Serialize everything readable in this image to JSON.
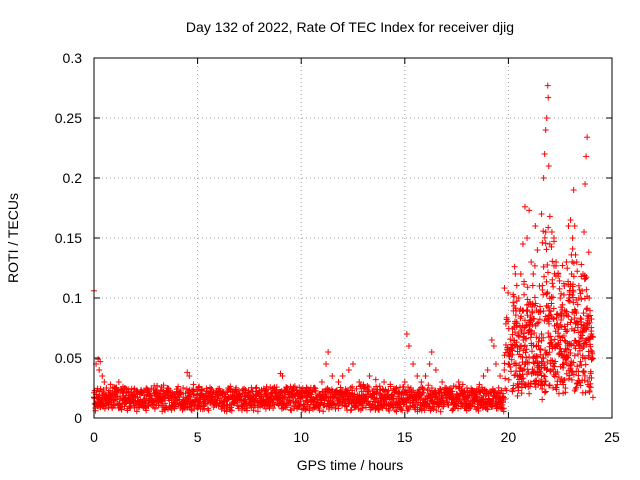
{
  "chart_data": {
    "type": "scatter",
    "title": "Day 132 of 2022, Rate Of TEC Index for receiver djig",
    "xlabel": "GPS time / hours",
    "ylabel": "ROTI / TECUs",
    "xlim": [
      0,
      25
    ],
    "ylim": [
      0,
      0.3
    ],
    "xticks": [
      0,
      5,
      10,
      15,
      20,
      25
    ],
    "xtick_labels": [
      "0",
      "5",
      "10",
      "15",
      "20",
      "25"
    ],
    "yticks": [
      0,
      0.05,
      0.1,
      0.15,
      0.2,
      0.25,
      0.3
    ],
    "ytick_labels": [
      "0",
      "0.05",
      "0.1",
      "0.15",
      "0.2",
      "0.25",
      "0.3"
    ],
    "grid": true,
    "marker": "+",
    "color": "#ff0000",
    "series": [
      {
        "name": "ROTI",
        "points": [
          [
            0.0,
            0.106
          ],
          [
            0.1,
            0.045
          ],
          [
            0.2,
            0.049
          ],
          [
            0.25,
            0.04
          ],
          [
            0.3,
            0.047
          ],
          [
            0.4,
            0.035
          ],
          [
            0.5,
            0.03
          ],
          [
            0.6,
            0.025
          ],
          [
            0.8,
            0.028
          ],
          [
            1.0,
            0.022
          ],
          [
            1.2,
            0.03
          ],
          [
            1.5,
            0.025
          ],
          [
            1.8,
            0.02
          ],
          [
            2.0,
            0.018
          ],
          [
            2.3,
            0.022
          ],
          [
            2.6,
            0.02
          ],
          [
            3.0,
            0.015
          ],
          [
            3.3,
            0.018
          ],
          [
            3.6,
            0.016
          ],
          [
            4.0,
            0.022
          ],
          [
            4.3,
            0.025
          ],
          [
            4.5,
            0.038
          ],
          [
            4.6,
            0.035
          ],
          [
            4.8,
            0.028
          ],
          [
            5.0,
            0.02
          ],
          [
            5.3,
            0.018
          ],
          [
            5.6,
            0.022
          ],
          [
            6.0,
            0.02
          ],
          [
            6.3,
            0.018
          ],
          [
            6.6,
            0.022
          ],
          [
            7.0,
            0.02
          ],
          [
            7.3,
            0.018
          ],
          [
            7.6,
            0.016
          ],
          [
            8.0,
            0.015
          ],
          [
            8.3,
            0.018
          ],
          [
            8.6,
            0.02
          ],
          [
            9.0,
            0.037
          ],
          [
            9.1,
            0.035
          ],
          [
            9.3,
            0.025
          ],
          [
            9.6,
            0.02
          ],
          [
            10.0,
            0.022
          ],
          [
            10.3,
            0.018
          ],
          [
            10.6,
            0.025
          ],
          [
            11.0,
            0.03
          ],
          [
            11.2,
            0.045
          ],
          [
            11.3,
            0.055
          ],
          [
            11.5,
            0.035
          ],
          [
            11.8,
            0.03
          ],
          [
            12.0,
            0.035
          ],
          [
            12.3,
            0.04
          ],
          [
            12.5,
            0.045
          ],
          [
            12.8,
            0.03
          ],
          [
            13.0,
            0.028
          ],
          [
            13.3,
            0.035
          ],
          [
            13.6,
            0.032
          ],
          [
            14.0,
            0.03
          ],
          [
            14.3,
            0.028
          ],
          [
            14.6,
            0.025
          ],
          [
            15.0,
            0.03
          ],
          [
            15.1,
            0.07
          ],
          [
            15.2,
            0.06
          ],
          [
            15.4,
            0.045
          ],
          [
            15.6,
            0.035
          ],
          [
            15.8,
            0.03
          ],
          [
            16.0,
            0.035
          ],
          [
            16.2,
            0.045
          ],
          [
            16.3,
            0.055
          ],
          [
            16.5,
            0.04
          ],
          [
            16.8,
            0.03
          ],
          [
            17.0,
            0.025
          ],
          [
            17.3,
            0.022
          ],
          [
            17.6,
            0.03
          ],
          [
            17.8,
            0.028
          ],
          [
            18.0,
            0.025
          ],
          [
            18.3,
            0.022
          ],
          [
            18.6,
            0.028
          ],
          [
            18.8,
            0.035
          ],
          [
            19.0,
            0.04
          ],
          [
            19.2,
            0.065
          ],
          [
            19.3,
            0.06
          ],
          [
            19.4,
            0.045
          ],
          [
            19.6,
            0.035
          ],
          [
            19.8,
            0.04
          ],
          [
            20.0,
            0.045
          ],
          [
            20.2,
            0.06
          ],
          [
            20.4,
            0.08
          ],
          [
            20.5,
            0.1
          ],
          [
            20.6,
            0.12
          ],
          [
            20.7,
            0.145
          ],
          [
            20.8,
            0.176
          ],
          [
            20.9,
            0.15
          ],
          [
            21.0,
            0.173
          ],
          [
            21.1,
            0.13
          ],
          [
            21.2,
            0.12
          ],
          [
            21.3,
            0.16
          ],
          [
            21.4,
            0.14
          ],
          [
            21.5,
            0.11
          ],
          [
            21.6,
            0.17
          ],
          [
            21.7,
            0.2
          ],
          [
            21.75,
            0.22
          ],
          [
            21.8,
            0.24
          ],
          [
            21.85,
            0.25
          ],
          [
            21.9,
            0.277
          ],
          [
            21.92,
            0.267
          ],
          [
            21.95,
            0.21
          ],
          [
            22.0,
            0.168
          ],
          [
            22.1,
            0.155
          ],
          [
            22.2,
            0.15
          ],
          [
            22.3,
            0.13
          ],
          [
            22.4,
            0.12
          ],
          [
            22.5,
            0.1
          ],
          [
            22.6,
            0.09
          ],
          [
            22.7,
            0.11
          ],
          [
            22.8,
            0.13
          ],
          [
            22.9,
            0.16
          ],
          [
            23.0,
            0.165
          ],
          [
            23.05,
            0.12
          ],
          [
            23.1,
            0.15
          ],
          [
            23.15,
            0.19
          ],
          [
            23.2,
            0.16
          ],
          [
            23.3,
            0.13
          ],
          [
            23.4,
            0.1
          ],
          [
            23.5,
            0.08
          ],
          [
            23.6,
            0.12
          ],
          [
            23.65,
            0.155
          ],
          [
            23.7,
            0.195
          ],
          [
            23.75,
            0.218
          ],
          [
            23.8,
            0.234
          ],
          [
            23.9,
            0.1
          ],
          [
            24.0,
            0.07
          ],
          [
            24.05,
            0.05
          ]
        ]
      }
    ]
  }
}
